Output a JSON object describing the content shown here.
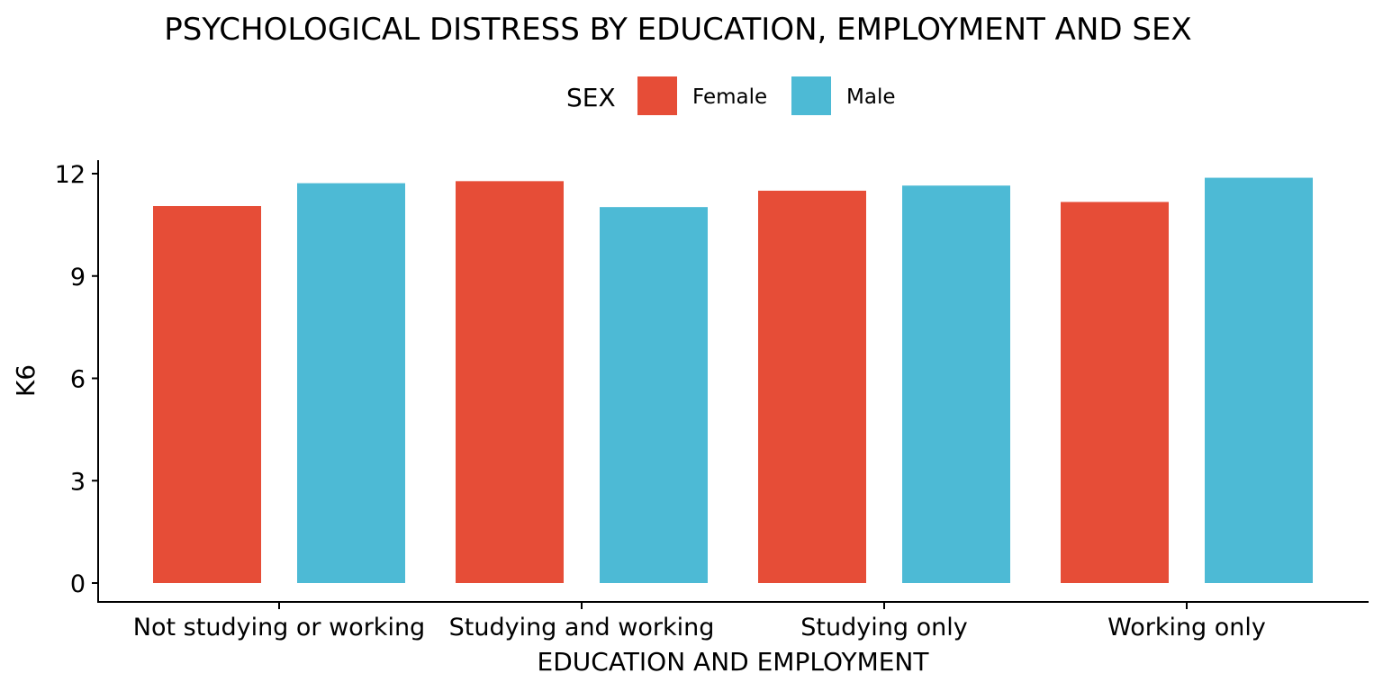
{
  "chart_data": {
    "type": "bar",
    "title": "PSYCHOLOGICAL DISTRESS BY EDUCATION, EMPLOYMENT AND SEX",
    "xlabel": "EDUCATION AND EMPLOYMENT",
    "ylabel": "K6",
    "ylim": [
      0,
      12.3
    ],
    "yticks": [
      0,
      3,
      6,
      9,
      12
    ],
    "grid": false,
    "legend": {
      "title": "SEX",
      "position": "top"
    },
    "categories": [
      "Not studying or working",
      "Studying and working",
      "Studying only",
      "Working only"
    ],
    "series": [
      {
        "name": "Female",
        "color": "#e64d37",
        "values": [
          11.05,
          11.78,
          11.5,
          11.17
        ]
      },
      {
        "name": "Male",
        "color": "#4dbad5",
        "values": [
          11.72,
          11.02,
          11.65,
          11.88
        ]
      }
    ]
  }
}
